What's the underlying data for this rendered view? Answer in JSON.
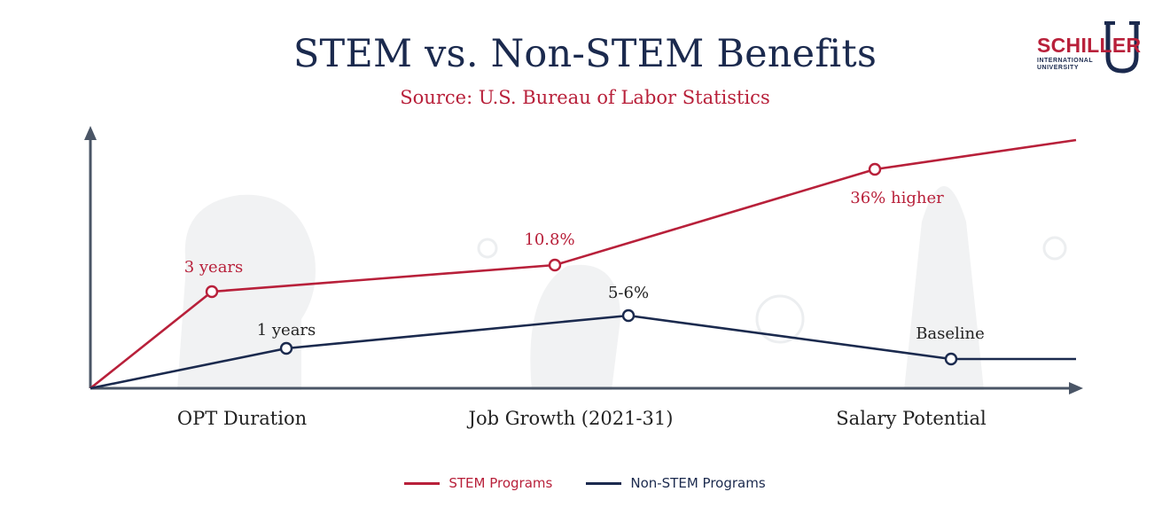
{
  "header": {
    "title": "STEM vs. Non-STEM Benefits",
    "subtitle": "Source: U.S. Bureau of Labor Statistics"
  },
  "logo": {
    "word": "SCHILLER",
    "sub_line1": "INTERNATIONAL",
    "sub_line2": "UNIVERSITY",
    "icon": "u-shield-logo"
  },
  "colors": {
    "stem": "#b8203a",
    "non_stem": "#1b2a4e",
    "axis": "#4a5566"
  },
  "chart_data": {
    "type": "line",
    "title": "STEM vs. Non-STEM Benefits",
    "subtitle": "Source: U.S. Bureau of Labor Statistics",
    "categories": [
      "OPT Duration",
      "Job Growth (2021-31)",
      "Salary Potential"
    ],
    "series": [
      {
        "name": "STEM Programs",
        "color": "#b8203a",
        "labels": [
          "3 years",
          "10.8%",
          "36% higher"
        ]
      },
      {
        "name": "Non-STEM Programs",
        "color": "#1b2a4e",
        "labels": [
          "1 years",
          "5-6%",
          "Baseline"
        ]
      }
    ],
    "xlabel": "",
    "ylabel": "",
    "grid": false,
    "legend": "bottom-center"
  }
}
